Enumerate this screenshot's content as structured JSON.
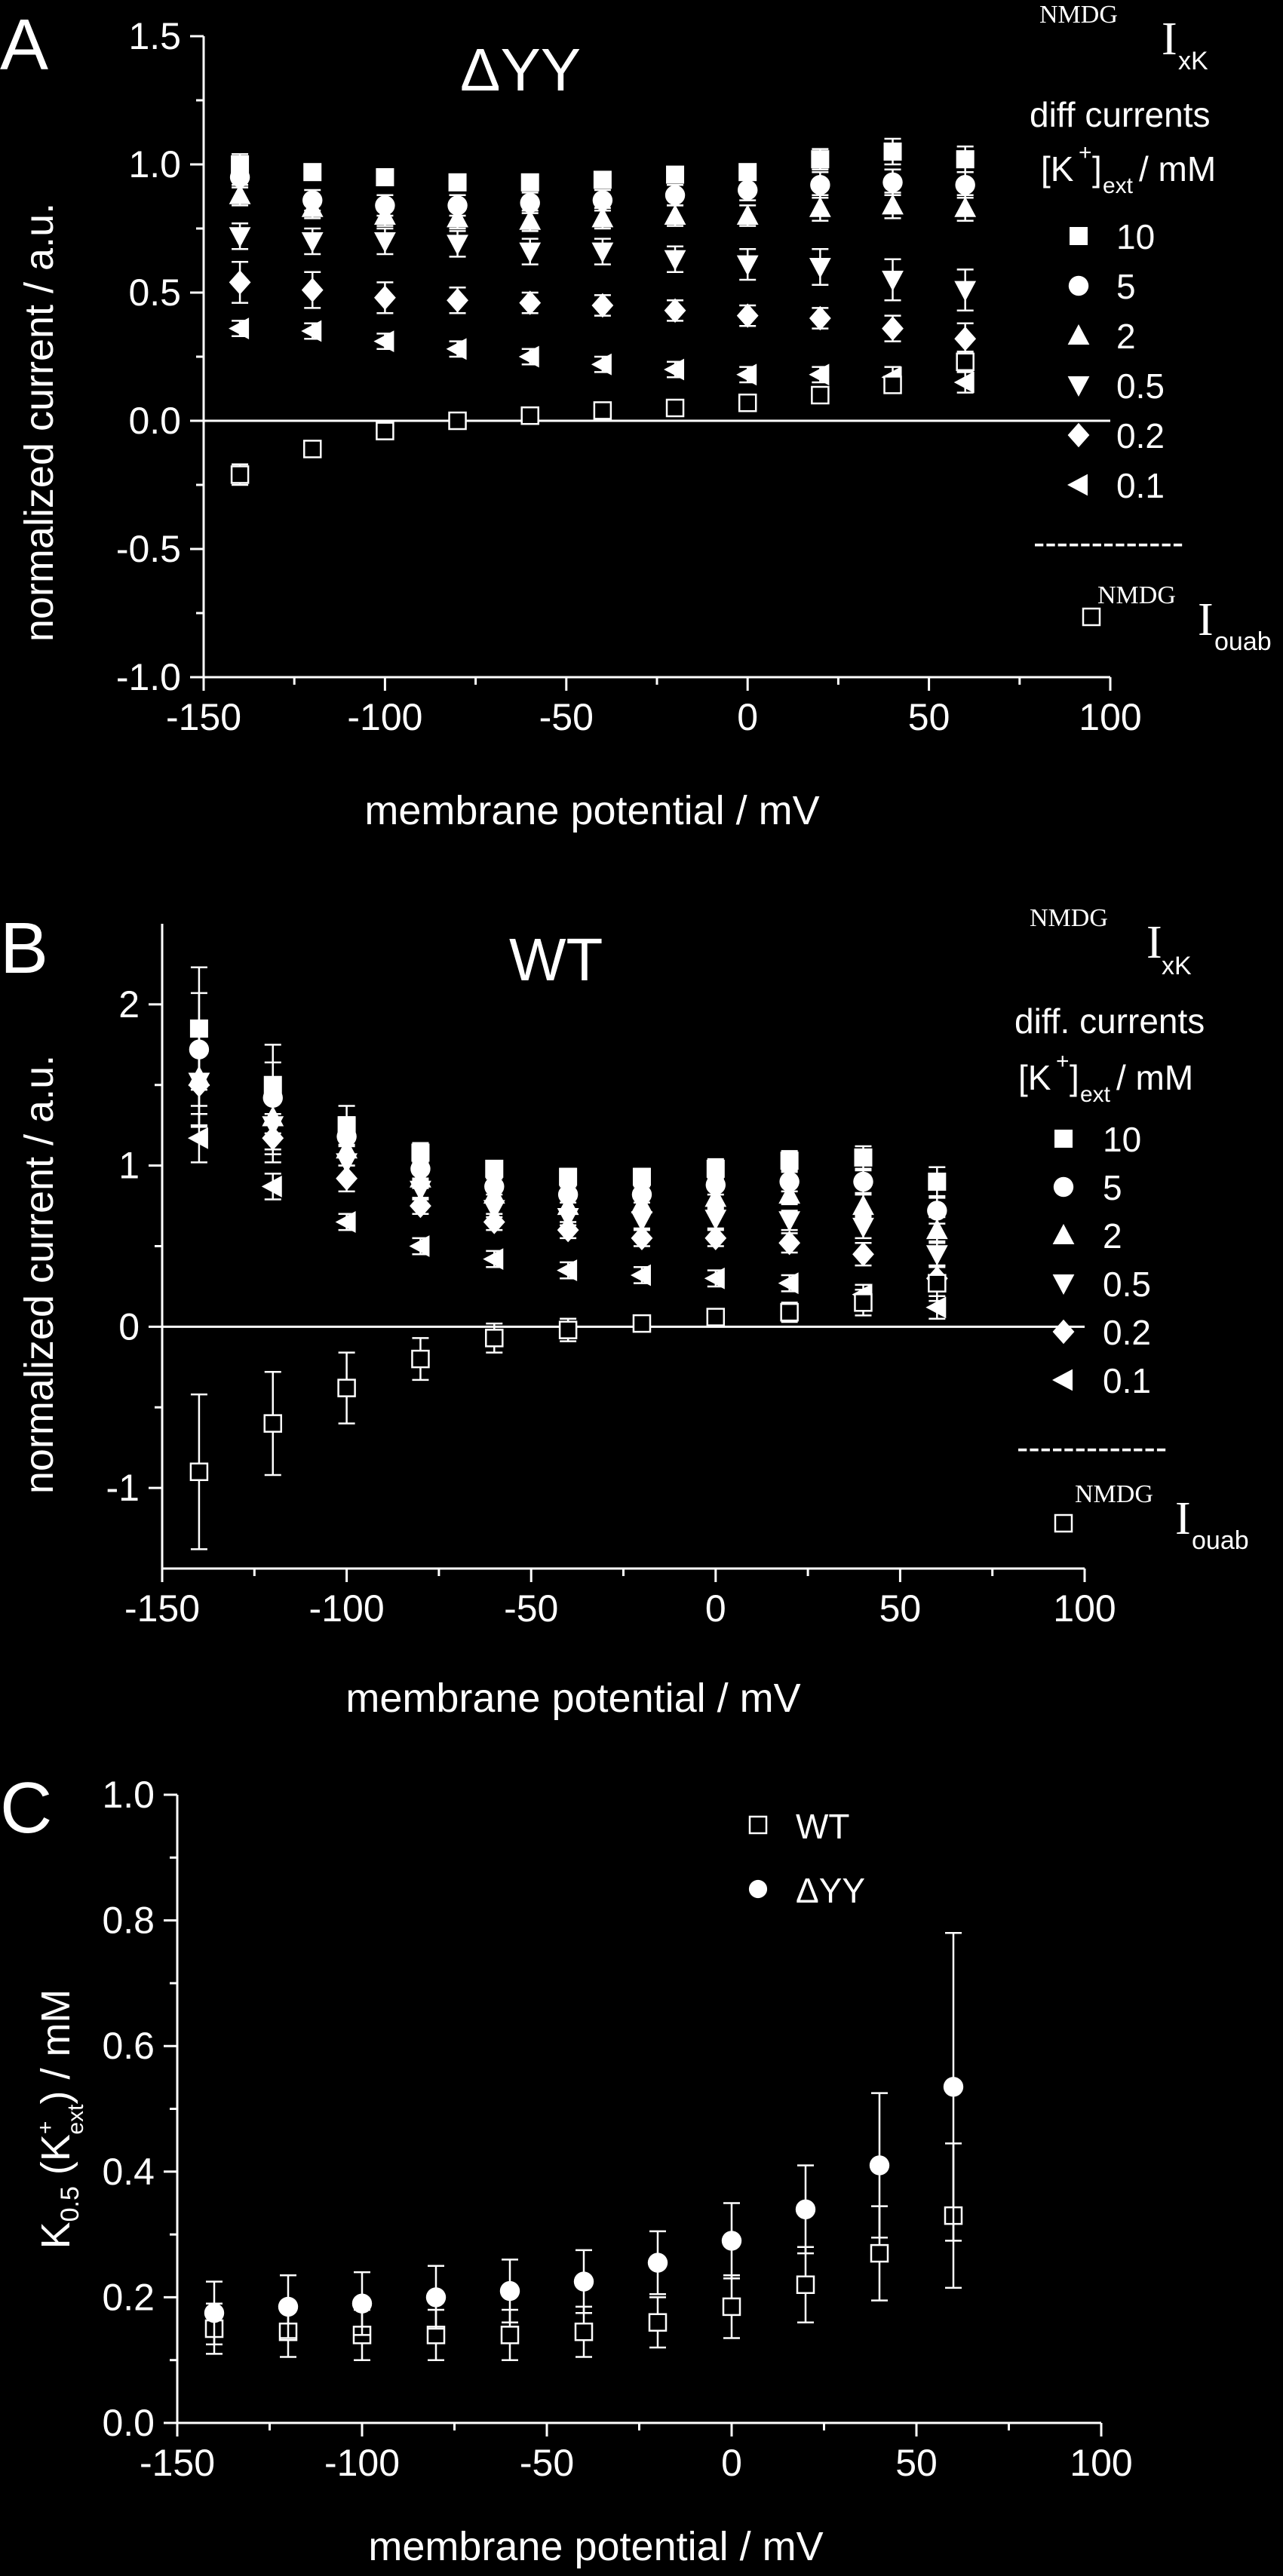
{
  "chart_data": [
    {
      "type": "scatter",
      "panel_letter": "A",
      "title": "ΔYY",
      "xlabel": "membrane potential / mV",
      "ylabel": "normalized current / a.u.",
      "xlim": [
        -150,
        100
      ],
      "ylim": [
        -1.0,
        1.5
      ],
      "xticks": [
        "-150",
        "-100",
        "-50",
        "0",
        "50",
        "100"
      ],
      "yticks": [
        "-1.0",
        "-0.5",
        "0.0",
        "0.5",
        "1.0",
        "1.5"
      ],
      "zero_line": true,
      "legend": {
        "heading_sup": "NMDG",
        "heading_main": "I",
        "heading_sub": "xK",
        "line2": "diff currents",
        "line3_prefix": "[K",
        "line3_sup": "+",
        "line3_mid": "]",
        "line3_sub": "ext",
        "line3_suffix": " / mM",
        "separator": "-------------",
        "ouab_sup": "NMDG",
        "ouab_main": "I",
        "ouab_sub": "ouab"
      },
      "x": [
        -140,
        -120,
        -100,
        -80,
        -60,
        -40,
        -20,
        0,
        20,
        40,
        60
      ],
      "series": [
        {
          "name": "10",
          "marker": "square",
          "values": [
            1.0,
            0.97,
            0.95,
            0.93,
            0.93,
            0.94,
            0.96,
            0.97,
            1.02,
            1.05,
            1.02
          ],
          "err": [
            0.04,
            0.03,
            0.03,
            0.03,
            0.03,
            0.03,
            0.03,
            0.03,
            0.04,
            0.05,
            0.05
          ]
        },
        {
          "name": "5",
          "marker": "circle",
          "values": [
            0.95,
            0.86,
            0.84,
            0.84,
            0.85,
            0.86,
            0.88,
            0.9,
            0.92,
            0.93,
            0.92
          ],
          "err": [
            0.04,
            0.04,
            0.04,
            0.04,
            0.04,
            0.04,
            0.04,
            0.04,
            0.05,
            0.05,
            0.05
          ]
        },
        {
          "name": "2",
          "marker": "triangle-up",
          "values": [
            0.88,
            0.83,
            0.8,
            0.79,
            0.78,
            0.79,
            0.8,
            0.8,
            0.83,
            0.84,
            0.83
          ],
          "err": [
            0.04,
            0.04,
            0.04,
            0.04,
            0.04,
            0.04,
            0.04,
            0.04,
            0.05,
            0.05,
            0.05
          ]
        },
        {
          "name": "0.5",
          "marker": "triangle-down",
          "values": [
            0.72,
            0.7,
            0.7,
            0.69,
            0.66,
            0.66,
            0.63,
            0.61,
            0.6,
            0.55,
            0.51
          ],
          "err": [
            0.05,
            0.05,
            0.05,
            0.05,
            0.05,
            0.05,
            0.05,
            0.06,
            0.07,
            0.08,
            0.08
          ]
        },
        {
          "name": "0.2",
          "marker": "diamond",
          "values": [
            0.54,
            0.51,
            0.48,
            0.47,
            0.46,
            0.45,
            0.43,
            0.41,
            0.4,
            0.36,
            0.32
          ],
          "err": [
            0.08,
            0.07,
            0.06,
            0.05,
            0.04,
            0.04,
            0.04,
            0.04,
            0.04,
            0.05,
            0.06
          ]
        },
        {
          "name": "0.1",
          "marker": "triangle-left",
          "values": [
            0.36,
            0.35,
            0.31,
            0.28,
            0.25,
            0.22,
            0.2,
            0.18,
            0.18,
            0.17,
            0.15
          ],
          "err": [
            0.03,
            0.03,
            0.03,
            0.03,
            0.03,
            0.03,
            0.03,
            0.03,
            0.03,
            0.04,
            0.04
          ]
        },
        {
          "name": "ouab",
          "marker": "open-square",
          "values": [
            -0.21,
            -0.11,
            -0.04,
            0.0,
            0.02,
            0.04,
            0.05,
            0.07,
            0.1,
            0.14,
            0.23
          ],
          "err": [
            0.04,
            0.03,
            0.03,
            0.02,
            0.02,
            0.02,
            0.02,
            0.02,
            0.03,
            0.03,
            0.04
          ]
        }
      ]
    },
    {
      "type": "scatter",
      "panel_letter": "B",
      "title": "WT",
      "xlabel": "membrane potential / mV",
      "ylabel": "normalized current / a.u.",
      "xlim": [
        -150,
        100
      ],
      "ylim": [
        -1.5,
        2.5
      ],
      "xticks": [
        "-150",
        "-100",
        "-50",
        "0",
        "50",
        "100"
      ],
      "yticks": [
        "-1",
        "0",
        "1",
        "2"
      ],
      "zero_line": true,
      "legend": {
        "heading_sup": "NMDG",
        "heading_main": "I",
        "heading_sub": "xK",
        "line2": "diff. currents",
        "line3_prefix": "[K",
        "line3_sup": "+",
        "line3_mid": "]",
        "line3_sub": "ext",
        "line3_suffix": " / mM",
        "separator": "-------------",
        "ouab_sup": "NMDG",
        "ouab_main": "I",
        "ouab_sub": "ouab"
      },
      "x": [
        -140,
        -120,
        -100,
        -80,
        -60,
        -40,
        -20,
        0,
        20,
        40,
        60
      ],
      "series": [
        {
          "name": "10",
          "marker": "square",
          "values": [
            1.85,
            1.5,
            1.25,
            1.08,
            0.98,
            0.93,
            0.93,
            0.98,
            1.03,
            1.05,
            0.9
          ],
          "err": [
            0.38,
            0.25,
            0.12,
            0.06,
            0.05,
            0.05,
            0.05,
            0.06,
            0.06,
            0.07,
            0.09
          ]
        },
        {
          "name": "5",
          "marker": "circle",
          "values": [
            1.72,
            1.42,
            1.18,
            0.98,
            0.87,
            0.82,
            0.82,
            0.88,
            0.9,
            0.9,
            0.72
          ],
          "err": [
            0.35,
            0.22,
            0.12,
            0.06,
            0.05,
            0.05,
            0.05,
            0.06,
            0.06,
            0.07,
            0.08
          ]
        },
        {
          "name": "2",
          "marker": "triangle-up",
          "values": [
            1.55,
            1.3,
            1.1,
            0.92,
            0.82,
            0.75,
            0.76,
            0.8,
            0.82,
            0.75,
            0.6
          ],
          "err": [
            0.3,
            0.2,
            0.1,
            0.06,
            0.05,
            0.05,
            0.05,
            0.06,
            0.06,
            0.07,
            0.08
          ]
        },
        {
          "name": "0.5",
          "marker": "triangle-down",
          "values": [
            1.52,
            1.25,
            1.02,
            0.85,
            0.73,
            0.68,
            0.66,
            0.67,
            0.66,
            0.62,
            0.45
          ],
          "err": [
            0.28,
            0.18,
            0.1,
            0.06,
            0.05,
            0.05,
            0.05,
            0.06,
            0.06,
            0.07,
            0.08
          ]
        },
        {
          "name": "0.2",
          "marker": "diamond",
          "values": [
            1.5,
            1.17,
            0.92,
            0.75,
            0.65,
            0.6,
            0.55,
            0.55,
            0.52,
            0.45,
            0.3
          ],
          "err": [
            0.25,
            0.15,
            0.08,
            0.05,
            0.05,
            0.05,
            0.05,
            0.05,
            0.06,
            0.07,
            0.08
          ]
        },
        {
          "name": "0.1",
          "marker": "triangle-left",
          "values": [
            1.17,
            0.87,
            0.65,
            0.5,
            0.42,
            0.35,
            0.32,
            0.3,
            0.27,
            0.2,
            0.12
          ],
          "err": [
            0.15,
            0.08,
            0.05,
            0.05,
            0.05,
            0.05,
            0.05,
            0.05,
            0.05,
            0.06,
            0.07
          ]
        },
        {
          "name": "ouab",
          "marker": "open-square",
          "values": [
            -0.9,
            -0.6,
            -0.38,
            -0.2,
            -0.07,
            -0.02,
            0.02,
            0.06,
            0.09,
            0.15,
            0.27
          ],
          "err": [
            0.48,
            0.32,
            0.22,
            0.13,
            0.09,
            0.07,
            0.05,
            0.05,
            0.06,
            0.08,
            0.11
          ]
        }
      ]
    },
    {
      "type": "scatter",
      "panel_letter": "C",
      "title": "",
      "xlabel": "membrane potential / mV",
      "ylabel_main": "K",
      "ylabel_sub": "0.5",
      "ylabel_mid": " (K",
      "ylabel_sup2": "+",
      "ylabel_sub2": "ext",
      "ylabel_end": ") / mM",
      "xlim": [
        -150,
        100
      ],
      "ylim": [
        0.0,
        1.0
      ],
      "xticks": [
        "-150",
        "-100",
        "-50",
        "0",
        "50",
        "100"
      ],
      "yticks": [
        "0.0",
        "0.2",
        "0.4",
        "0.6",
        "0.8",
        "1.0"
      ],
      "zero_line": false,
      "legend_entries": [
        "WT",
        "ΔYY"
      ],
      "x": [
        -140,
        -120,
        -100,
        -80,
        -60,
        -40,
        -20,
        0,
        20,
        40,
        60
      ],
      "series": [
        {
          "name": "WT",
          "marker": "open-square",
          "values": [
            0.15,
            0.145,
            0.14,
            0.14,
            0.14,
            0.145,
            0.16,
            0.185,
            0.22,
            0.27,
            0.33
          ],
          "err": [
            0.04,
            0.04,
            0.04,
            0.04,
            0.04,
            0.04,
            0.04,
            0.05,
            0.06,
            0.075,
            0.115
          ]
        },
        {
          "name": "ΔYY",
          "marker": "circle",
          "values": [
            0.175,
            0.185,
            0.19,
            0.2,
            0.21,
            0.225,
            0.255,
            0.29,
            0.34,
            0.41,
            0.535
          ],
          "err": [
            0.05,
            0.05,
            0.05,
            0.05,
            0.05,
            0.05,
            0.05,
            0.06,
            0.07,
            0.115,
            0.245
          ]
        }
      ]
    }
  ],
  "colors": {
    "background": "#000000",
    "foreground": "#ffffff"
  }
}
